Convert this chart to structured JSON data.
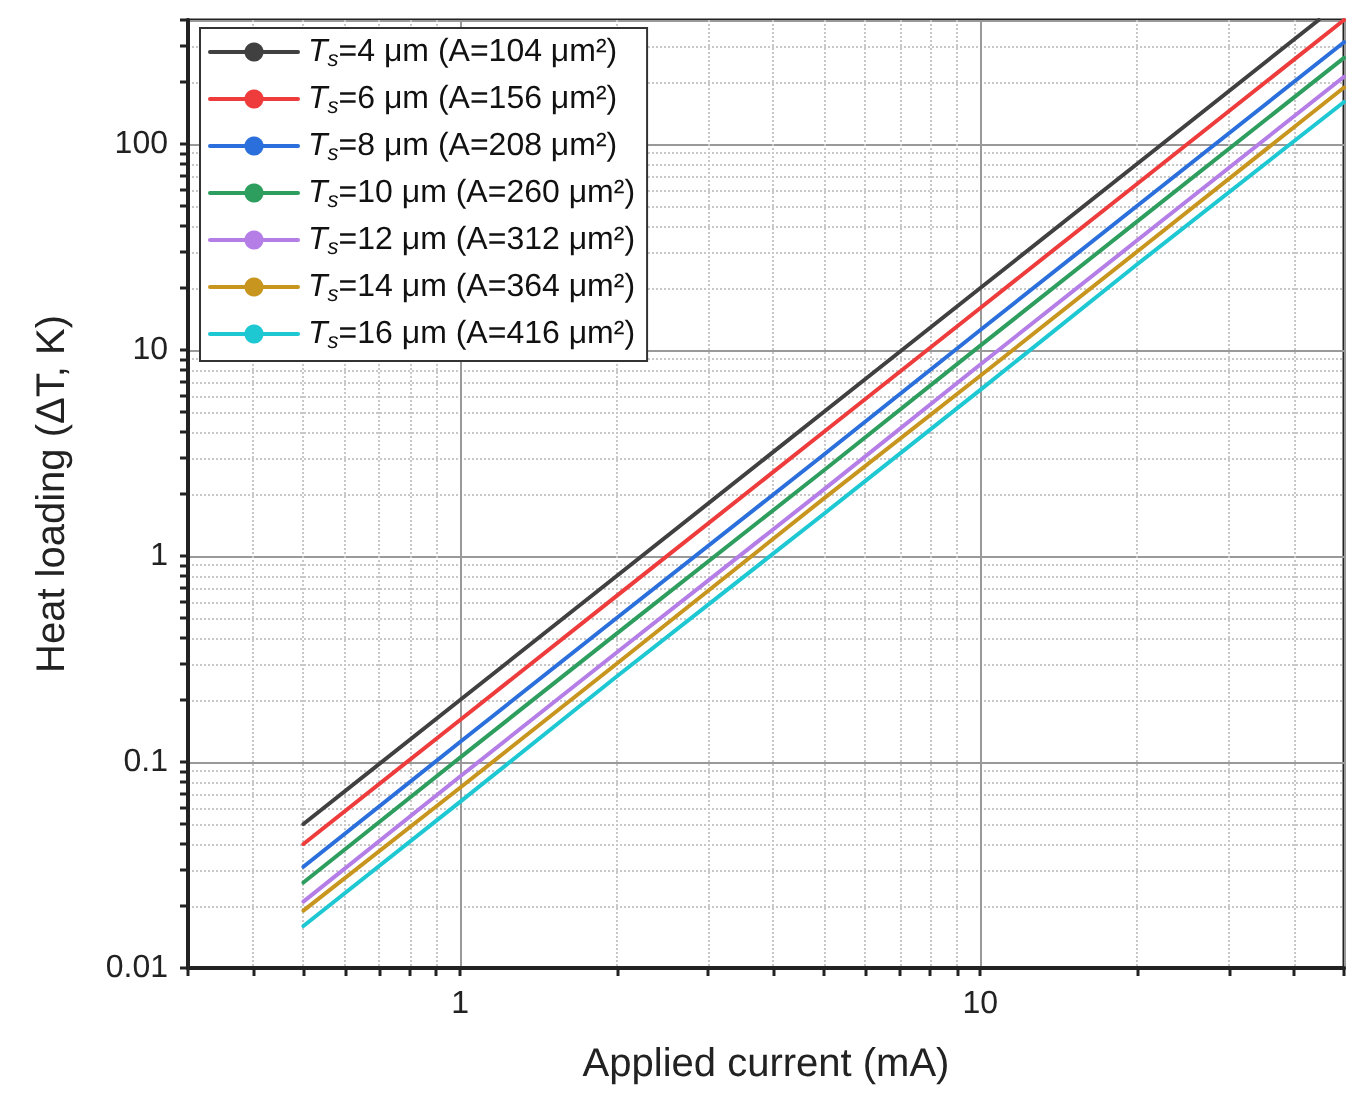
{
  "chart_data": {
    "type": "line",
    "xlabel": "Applied current (mA)",
    "ylabel": "Heat loading (ΔT, K)",
    "log": "xy",
    "grid": true,
    "legend": "top left",
    "marker": "none",
    "line_style": "solid",
    "xlim": [
      0.3,
      50
    ],
    "ylim": [
      0.01,
      400
    ],
    "xticks": [
      {
        "value": 0.3,
        "label": null
      },
      {
        "value": 0.4,
        "label": null
      },
      {
        "value": 0.5,
        "label": null
      },
      {
        "value": 0.6,
        "label": null
      },
      {
        "value": 0.7,
        "label": null
      },
      {
        "value": 0.8,
        "label": null
      },
      {
        "value": 0.9,
        "label": null
      },
      1,
      {
        "value": 2,
        "label": null
      },
      {
        "value": 3,
        "label": null
      },
      {
        "value": 4,
        "label": null
      },
      {
        "value": 5,
        "label": null
      },
      {
        "value": 6,
        "label": null
      },
      {
        "value": 7,
        "label": null
      },
      {
        "value": 8,
        "label": null
      },
      {
        "value": 9,
        "label": null
      },
      10,
      {
        "value": 20,
        "label": null
      },
      {
        "value": 30,
        "label": null
      },
      {
        "value": 40,
        "label": null
      },
      {
        "value": 50,
        "label": null
      }
    ],
    "yticks": [
      0.01,
      {
        "value": 0.02,
        "label": null
      },
      {
        "value": 0.03,
        "label": null
      },
      {
        "value": 0.04,
        "label": null
      },
      {
        "value": 0.05,
        "label": null
      },
      {
        "value": 0.06,
        "label": null
      },
      {
        "value": 0.07,
        "label": null
      },
      {
        "value": 0.08,
        "label": null
      },
      {
        "value": 0.09,
        "label": null
      },
      0.1,
      {
        "value": 0.2,
        "label": null
      },
      {
        "value": 0.3,
        "label": null
      },
      {
        "value": 0.4,
        "label": null
      },
      {
        "value": 0.5,
        "label": null
      },
      {
        "value": 0.6,
        "label": null
      },
      {
        "value": 0.7,
        "label": null
      },
      {
        "value": 0.8,
        "label": null
      },
      {
        "value": 0.9,
        "label": null
      },
      1,
      {
        "value": 2,
        "label": null
      },
      {
        "value": 3,
        "label": null
      },
      {
        "value": 4,
        "label": null
      },
      {
        "value": 5,
        "label": null
      },
      {
        "value": 6,
        "label": null
      },
      {
        "value": 7,
        "label": null
      },
      {
        "value": 8,
        "label": null
      },
      {
        "value": 9,
        "label": null
      },
      10,
      {
        "value": 20,
        "label": null
      },
      {
        "value": 30,
        "label": null
      },
      {
        "value": 40,
        "label": null
      },
      {
        "value": 50,
        "label": null
      },
      {
        "value": 60,
        "label": null
      },
      {
        "value": 70,
        "label": null
      },
      {
        "value": 80,
        "label": null
      },
      {
        "value": 90,
        "label": null
      },
      100,
      {
        "value": 200,
        "label": null
      },
      {
        "value": 300,
        "label": null
      },
      {
        "value": 400,
        "label": null
      }
    ],
    "series": [
      {
        "name": "T$_{s}$=4 μm (A=104 μm²)",
        "color": "#404040",
        "x": [
          0.5,
          1,
          2,
          5,
          10,
          20,
          44.7
        ],
        "values": [
          0.05,
          0.2,
          0.8,
          5,
          20,
          80,
          400
        ]
      },
      {
        "name": "T$_{s}$=6 μm (A=156 μm²)",
        "color": "#ee3b3b",
        "x": [
          0.5,
          1,
          2,
          5,
          10,
          20,
          50
        ],
        "values": [
          0.04,
          0.16,
          0.64,
          4,
          16,
          64,
          400
        ]
      },
      {
        "name": "T$_{s}$=8 μm (A=208 μm²)",
        "color": "#2a6fdb",
        "x": [
          0.5,
          1,
          2,
          5,
          10,
          20,
          50
        ],
        "values": [
          0.031,
          0.125,
          0.5,
          3.1,
          12.5,
          50,
          312
        ]
      },
      {
        "name": "T$_{s}$=10 μm (A=260 μm²)",
        "color": "#2e9e5e",
        "x": [
          0.5,
          1,
          2,
          5,
          10,
          20,
          50
        ],
        "values": [
          0.026,
          0.105,
          0.42,
          2.6,
          10.5,
          42,
          262
        ]
      },
      {
        "name": "T$_{s}$=12 μm (A=312 μm²)",
        "color": "#b57de6",
        "x": [
          0.5,
          1,
          2,
          5,
          10,
          20,
          50
        ],
        "values": [
          0.021,
          0.085,
          0.34,
          2.1,
          8.5,
          34,
          212
        ]
      },
      {
        "name": "T$_{s}$=14 μm (A=364 μm²)",
        "color": "#c8961e",
        "x": [
          0.5,
          1,
          2,
          5,
          10,
          20,
          50
        ],
        "values": [
          0.019,
          0.075,
          0.3,
          1.9,
          7.5,
          30,
          188
        ]
      },
      {
        "name": "T$_{s}$=16 μm (A=416 μm²)",
        "color": "#1ec8d2",
        "x": [
          0.5,
          1,
          2,
          5,
          10,
          20,
          50
        ],
        "values": [
          0.016,
          0.064,
          0.26,
          1.6,
          6.4,
          26,
          160
        ]
      }
    ]
  }
}
